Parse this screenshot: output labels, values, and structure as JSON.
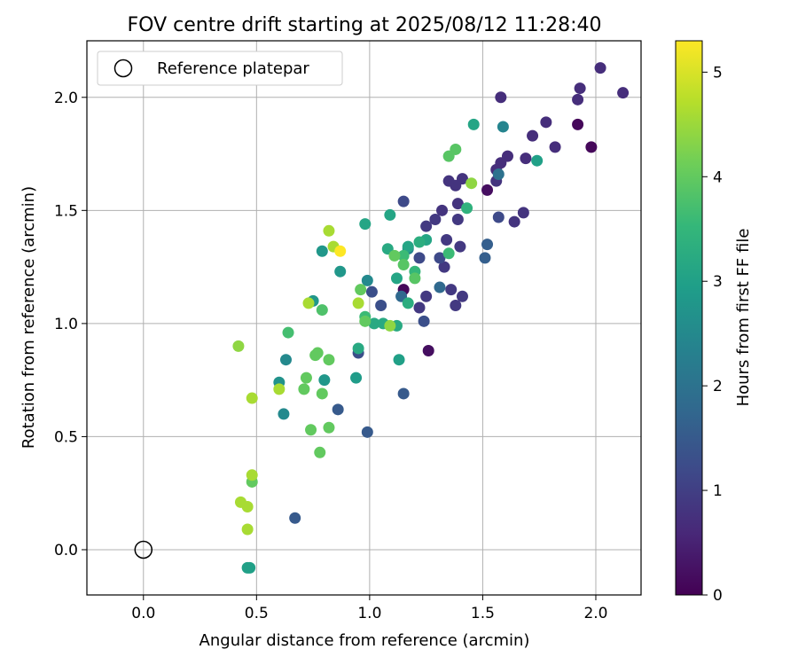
{
  "chart_data": {
    "type": "scatter",
    "title": "FOV centre drift starting at 2025/08/12 11:28:40",
    "xlabel": "Angular distance from reference (arcmin)",
    "ylabel": "Rotation from reference (arcmin)",
    "xlim": [
      -0.25,
      2.2
    ],
    "ylim": [
      -0.2,
      2.25
    ],
    "xticks": [
      0.0,
      0.5,
      1.0,
      1.5,
      2.0
    ],
    "yticks": [
      0.0,
      0.5,
      1.0,
      1.5,
      2.0
    ],
    "xtick_labels": [
      "0.0",
      "0.5",
      "1.0",
      "1.5",
      "2.0"
    ],
    "ytick_labels": [
      "0.0",
      "0.5",
      "1.0",
      "1.5",
      "2.0"
    ],
    "grid": true,
    "legend": {
      "placement": "top-left",
      "label": "Reference platepar"
    },
    "reference_point": {
      "x": 0.0,
      "y": 0.0
    },
    "colorbar": {
      "label": "Hours from first FF file",
      "range": [
        0,
        5.3
      ],
      "ticks": [
        0,
        1,
        2,
        3,
        4,
        5
      ],
      "tick_labels": [
        "0",
        "1",
        "2",
        "3",
        "4",
        "5"
      ],
      "colormap": "viridis",
      "colors": [
        "#440154",
        "#482878",
        "#3e4989",
        "#31688e",
        "#26828e",
        "#1f9e89",
        "#35b779",
        "#6ece58",
        "#b5de2b",
        "#fde725"
      ]
    },
    "series": [
      {
        "points": [
          [
            1.92,
            1.88,
            0.1
          ],
          [
            1.98,
            1.78,
            0.1
          ],
          [
            1.52,
            1.59,
            0.2
          ],
          [
            1.26,
            0.88,
            0.2
          ],
          [
            1.15,
            1.15,
            0.1
          ],
          [
            2.02,
            2.13,
            0.7
          ],
          [
            1.93,
            2.04,
            0.7
          ],
          [
            2.12,
            2.02,
            0.7
          ],
          [
            1.92,
            1.99,
            0.7
          ],
          [
            1.58,
            2.0,
            0.7
          ],
          [
            1.78,
            1.89,
            0.7
          ],
          [
            1.72,
            1.83,
            0.7
          ],
          [
            1.82,
            1.78,
            0.7
          ],
          [
            1.61,
            1.74,
            0.7
          ],
          [
            1.69,
            1.73,
            0.7
          ],
          [
            1.58,
            1.71,
            0.7
          ],
          [
            1.56,
            1.68,
            0.7
          ],
          [
            1.41,
            1.64,
            0.8
          ],
          [
            1.38,
            1.61,
            0.8
          ],
          [
            1.35,
            1.63,
            0.8
          ],
          [
            1.56,
            1.63,
            0.8
          ],
          [
            1.68,
            1.49,
            0.8
          ],
          [
            1.64,
            1.45,
            0.8
          ],
          [
            1.39,
            1.53,
            0.8
          ],
          [
            1.32,
            1.5,
            0.8
          ],
          [
            1.29,
            1.46,
            0.9
          ],
          [
            1.39,
            1.46,
            0.9
          ],
          [
            1.25,
            1.43,
            0.9
          ],
          [
            1.34,
            1.37,
            0.9
          ],
          [
            1.4,
            1.34,
            0.9
          ],
          [
            1.33,
            1.25,
            0.9
          ],
          [
            1.36,
            1.15,
            0.9
          ],
          [
            1.41,
            1.12,
            0.9
          ],
          [
            1.25,
            1.12,
            0.9
          ],
          [
            1.38,
            1.08,
            0.9
          ],
          [
            1.22,
            1.07,
            0.9
          ],
          [
            1.57,
            1.47,
            1.2
          ],
          [
            1.15,
            1.54,
            1.2
          ],
          [
            1.22,
            1.29,
            1.2
          ],
          [
            1.31,
            1.29,
            1.2
          ],
          [
            1.01,
            1.14,
            1.3
          ],
          [
            1.05,
            1.08,
            1.3
          ],
          [
            1.24,
            1.01,
            1.3
          ],
          [
            0.95,
            0.87,
            1.3
          ],
          [
            1.15,
            0.69,
            1.5
          ],
          [
            0.86,
            0.62,
            1.5
          ],
          [
            0.99,
            0.52,
            1.5
          ],
          [
            0.67,
            0.14,
            1.5
          ],
          [
            1.51,
            1.29,
            1.6
          ],
          [
            1.52,
            1.35,
            1.6
          ],
          [
            1.31,
            1.16,
            1.8
          ],
          [
            1.14,
            1.12,
            1.8
          ],
          [
            1.57,
            1.66,
            2.0
          ],
          [
            1.59,
            1.87,
            2.4
          ],
          [
            1.17,
            1.33,
            2.4
          ],
          [
            0.99,
            1.19,
            2.5
          ],
          [
            0.63,
            0.84,
            2.5
          ],
          [
            0.62,
            0.6,
            2.5
          ],
          [
            0.6,
            0.74,
            2.7
          ],
          [
            0.87,
            1.23,
            2.8
          ],
          [
            0.79,
            1.32,
            2.8
          ],
          [
            0.75,
            1.1,
            2.8
          ],
          [
            0.8,
            0.75,
            2.8
          ],
          [
            0.94,
            0.76,
            2.9
          ],
          [
            1.13,
            0.84,
            3.0
          ],
          [
            1.74,
            1.72,
            3.0
          ],
          [
            1.46,
            1.88,
            3.1
          ],
          [
            1.17,
            1.34,
            3.1
          ],
          [
            1.12,
            1.2,
            3.1
          ],
          [
            1.25,
            1.37,
            3.1
          ],
          [
            0.98,
            1.44,
            3.1
          ],
          [
            1.09,
            1.48,
            3.1
          ],
          [
            1.08,
            1.33,
            3.2
          ],
          [
            1.02,
            1.0,
            3.2
          ],
          [
            1.06,
            1.0,
            3.2
          ],
          [
            1.12,
            0.99,
            3.2
          ],
          [
            0.95,
            0.89,
            3.2
          ],
          [
            1.22,
            1.36,
            3.3
          ],
          [
            1.17,
            1.09,
            3.3
          ],
          [
            1.43,
            1.51,
            3.4
          ],
          [
            1.2,
            1.23,
            3.5
          ],
          [
            1.15,
            1.3,
            3.6
          ],
          [
            1.35,
            1.31,
            3.6
          ],
          [
            0.98,
            1.03,
            3.6
          ],
          [
            0.64,
            0.96,
            3.7
          ],
          [
            0.79,
            1.06,
            3.8
          ],
          [
            1.38,
            1.77,
            3.9
          ],
          [
            1.35,
            1.74,
            3.9
          ],
          [
            1.15,
            1.26,
            3.9
          ],
          [
            1.2,
            1.2,
            3.9
          ],
          [
            1.11,
            1.3,
            4.0
          ],
          [
            0.96,
            1.15,
            4.0
          ],
          [
            0.98,
            1.01,
            4.0
          ],
          [
            0.77,
            0.87,
            4.0
          ],
          [
            0.76,
            0.86,
            4.0
          ],
          [
            0.72,
            0.76,
            4.0
          ],
          [
            0.82,
            0.84,
            4.0
          ],
          [
            0.79,
            0.69,
            4.0
          ],
          [
            0.82,
            0.54,
            4.0
          ],
          [
            0.78,
            0.43,
            4.0
          ],
          [
            0.74,
            0.53,
            4.0
          ],
          [
            0.71,
            0.71,
            4.0
          ],
          [
            0.48,
            0.3,
            4.0
          ],
          [
            1.45,
            1.62,
            4.4
          ],
          [
            1.09,
            0.99,
            4.4
          ],
          [
            0.42,
            0.9,
            4.4
          ],
          [
            0.84,
            1.34,
            4.6
          ],
          [
            0.82,
            1.41,
            4.6
          ],
          [
            0.73,
            1.09,
            4.6
          ],
          [
            0.95,
            1.09,
            4.6
          ],
          [
            0.48,
            0.67,
            4.6
          ],
          [
            0.6,
            0.71,
            4.6
          ],
          [
            0.48,
            0.33,
            4.6
          ],
          [
            0.43,
            0.21,
            4.6
          ],
          [
            0.46,
            0.19,
            4.6
          ],
          [
            0.46,
            0.09,
            4.6
          ],
          [
            0.87,
            1.32,
            5.3
          ],
          [
            0.47,
            -0.08,
            3.0
          ],
          [
            0.46,
            -0.08,
            3.0
          ]
        ]
      }
    ]
  }
}
